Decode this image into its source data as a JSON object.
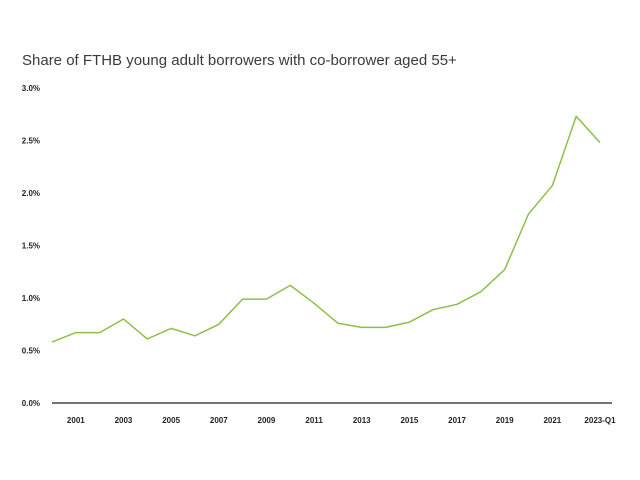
{
  "chart_data": {
    "type": "line",
    "title": "Share of FTHB young adult borrowers with co-borrower aged 55+",
    "xlabel": "",
    "ylabel": "",
    "ylim": [
      0,
      3.0
    ],
    "yticks": [
      "0.0%",
      "0.5%",
      "1.0%",
      "1.5%",
      "2.0%",
      "2.5%",
      "3.0%"
    ],
    "xtick_labels": [
      "2001",
      "2003",
      "2005",
      "2007",
      "2009",
      "2011",
      "2013",
      "2015",
      "2017",
      "2019",
      "2021",
      "2023-Q1"
    ],
    "grid": false,
    "legend": "none",
    "series": [
      {
        "color": "#8dc04a",
        "x": [
          "2000",
          "2001",
          "2002",
          "2003",
          "2004",
          "2005",
          "2006",
          "2007",
          "2008",
          "2009",
          "2010",
          "2011",
          "2012",
          "2013",
          "2014",
          "2015",
          "2016",
          "2017",
          "2018",
          "2019",
          "2020",
          "2021",
          "2022",
          "2023-Q1"
        ],
        "values": [
          0.58,
          0.67,
          0.67,
          0.8,
          0.61,
          0.71,
          0.64,
          0.75,
          0.99,
          0.99,
          1.12,
          0.95,
          0.76,
          0.72,
          0.72,
          0.77,
          0.89,
          0.94,
          1.06,
          1.27,
          1.8,
          2.07,
          2.73,
          2.48
        ]
      }
    ]
  }
}
